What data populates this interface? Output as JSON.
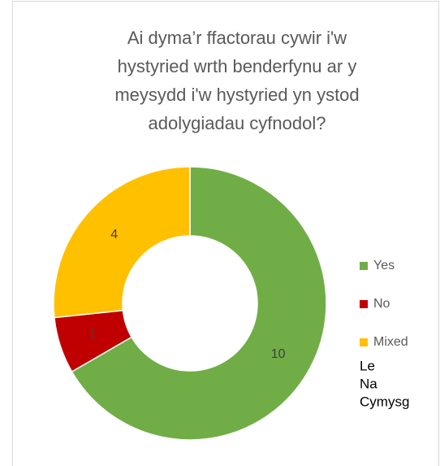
{
  "chart_data": {
    "type": "donut",
    "title": [
      "Ai dyma’r ffactorau cywir i'w",
      "hystyried wrth benderfynu ar y",
      "meysydd i'w hystyried yn ystod",
      "adolygiadau cyfnodol?"
    ],
    "categories": [
      "Yes",
      "No",
      "Mixed"
    ],
    "values": [
      10,
      1,
      4
    ],
    "colors": [
      "#70ad47",
      "#c00000",
      "#ffc000"
    ],
    "legend": "right",
    "legend_extra": [
      "Le",
      "Na",
      "Cymysg"
    ]
  }
}
